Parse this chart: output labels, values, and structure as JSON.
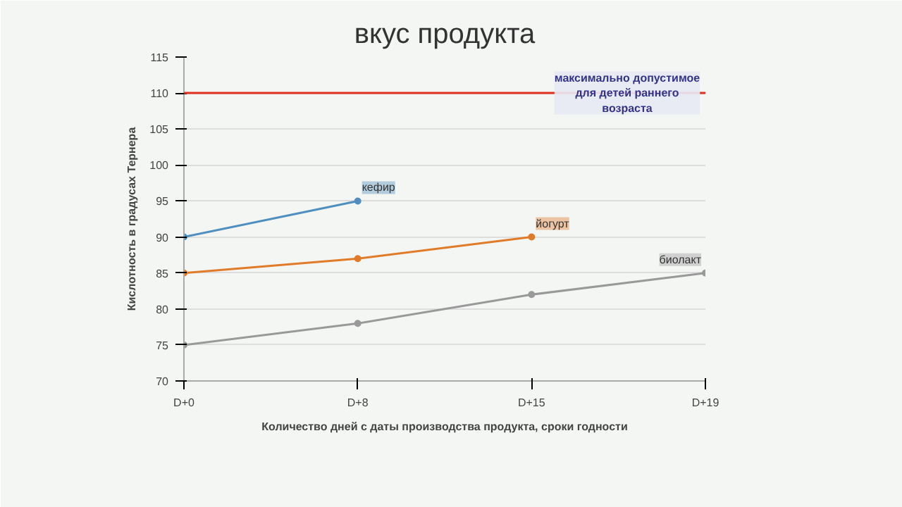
{
  "chart_data": {
    "type": "line",
    "title": "вкус продукта",
    "ylabel": "Кислотность в градусах Тернера",
    "xlabel": "Количество дней с даты производства продукта, сроки годности",
    "categories": [
      "D+0",
      "D+8",
      "D+15",
      "D+19"
    ],
    "series": [
      {
        "name": "кефир",
        "color": "#4f8fbf",
        "values": [
          90,
          95,
          null,
          null
        ]
      },
      {
        "name": "йогурт",
        "color": "#e07b2a",
        "values": [
          85,
          87,
          90,
          null
        ]
      },
      {
        "name": "биолакт",
        "color": "#999999",
        "values": [
          75,
          78,
          82,
          85
        ]
      }
    ],
    "ylim": [
      70,
      115
    ],
    "yticks": [
      70,
      75,
      80,
      85,
      90,
      95,
      100,
      105,
      110,
      115
    ],
    "grid": "y",
    "marker": "circle",
    "line_style": "solid",
    "ref_lines": [
      {
        "axis": "y",
        "value": 110,
        "label": "максимально допустимое для детей раннего возраста",
        "color": "#e03020"
      }
    ]
  }
}
